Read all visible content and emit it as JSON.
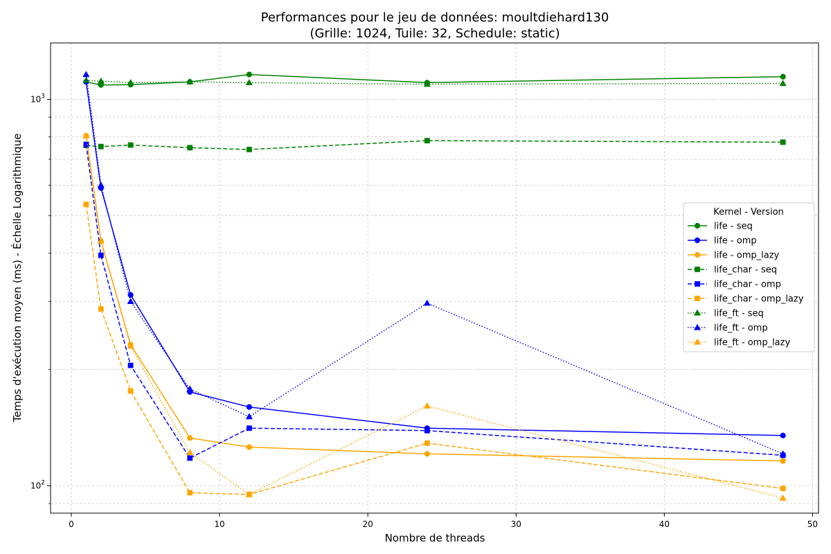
{
  "chart_data": {
    "type": "line",
    "title": "Performances pour le jeu de données: moultdiehard130",
    "subtitle": "(Grille: 1024, Tuile: 32, Schedule: static)",
    "xlabel": "Nombre de threads",
    "ylabel": "Temps d'exécution moyen (ms) - Échelle Logarithmique",
    "x_scale": "linear",
    "y_scale": "log",
    "xlim": [
      -1.4,
      50.4
    ],
    "ylim": [
      85,
      1400
    ],
    "x_ticks": [
      0,
      10,
      20,
      30,
      40,
      50
    ],
    "x_tick_labels": [
      "0",
      "10",
      "20",
      "30",
      "40",
      "50"
    ],
    "y_ticks": [
      100,
      1000
    ],
    "y_tick_label_bases": [
      "10",
      "10"
    ],
    "y_tick_label_exponents": [
      "2",
      "3"
    ],
    "grid": true,
    "legend": {
      "title": "Kernel - Version",
      "placement": "right"
    },
    "x": [
      1,
      2,
      4,
      8,
      12,
      24,
      48
    ],
    "series": [
      {
        "name": "life - seq",
        "color": "#008000",
        "dash": "solid",
        "marker": "circle",
        "values": [
          1110,
          1090,
          1092,
          1110,
          1160,
          1105,
          1145
        ]
      },
      {
        "name": "life - omp",
        "color": "#0000ff",
        "dash": "solid",
        "marker": "circle",
        "values": [
          1110,
          590,
          312,
          175,
          160,
          141,
          135
        ]
      },
      {
        "name": "life - omp_lazy",
        "color": "#ffa500",
        "dash": "solid",
        "marker": "circle",
        "values": [
          805,
          430,
          232,
          133,
          126,
          121,
          116
        ]
      },
      {
        "name": "life_char - seq",
        "color": "#008000",
        "dash": "dashed",
        "marker": "square",
        "values": [
          760,
          755,
          762,
          750,
          742,
          782,
          775
        ]
      },
      {
        "name": "life_char - omp",
        "color": "#0000ff",
        "dash": "dashed",
        "marker": "square",
        "values": [
          765,
          395,
          205,
          118,
          141,
          139,
          120
        ]
      },
      {
        "name": "life_char - omp_lazy",
        "color": "#ffa500",
        "dash": "dashed",
        "marker": "square",
        "values": [
          535,
          287,
          176,
          96,
          95,
          129,
          98.5
        ]
      },
      {
        "name": "life_ft - seq",
        "color": "#008000",
        "dash": "dotted",
        "marker": "triangle",
        "values": [
          1120,
          1115,
          1105,
          1110,
          1105,
          1095,
          1100
        ]
      },
      {
        "name": "life_ft - omp",
        "color": "#0000ff",
        "dash": "dotted",
        "marker": "triangle",
        "values": [
          1160,
          600,
          300,
          178,
          151,
          297,
          121
        ]
      },
      {
        "name": "life_ft - omp_lazy",
        "color": "#ffa500",
        "dash": "dotted",
        "marker": "triangle",
        "values": [
          805,
          430,
          230,
          122,
          95,
          161,
          93
        ]
      }
    ]
  }
}
